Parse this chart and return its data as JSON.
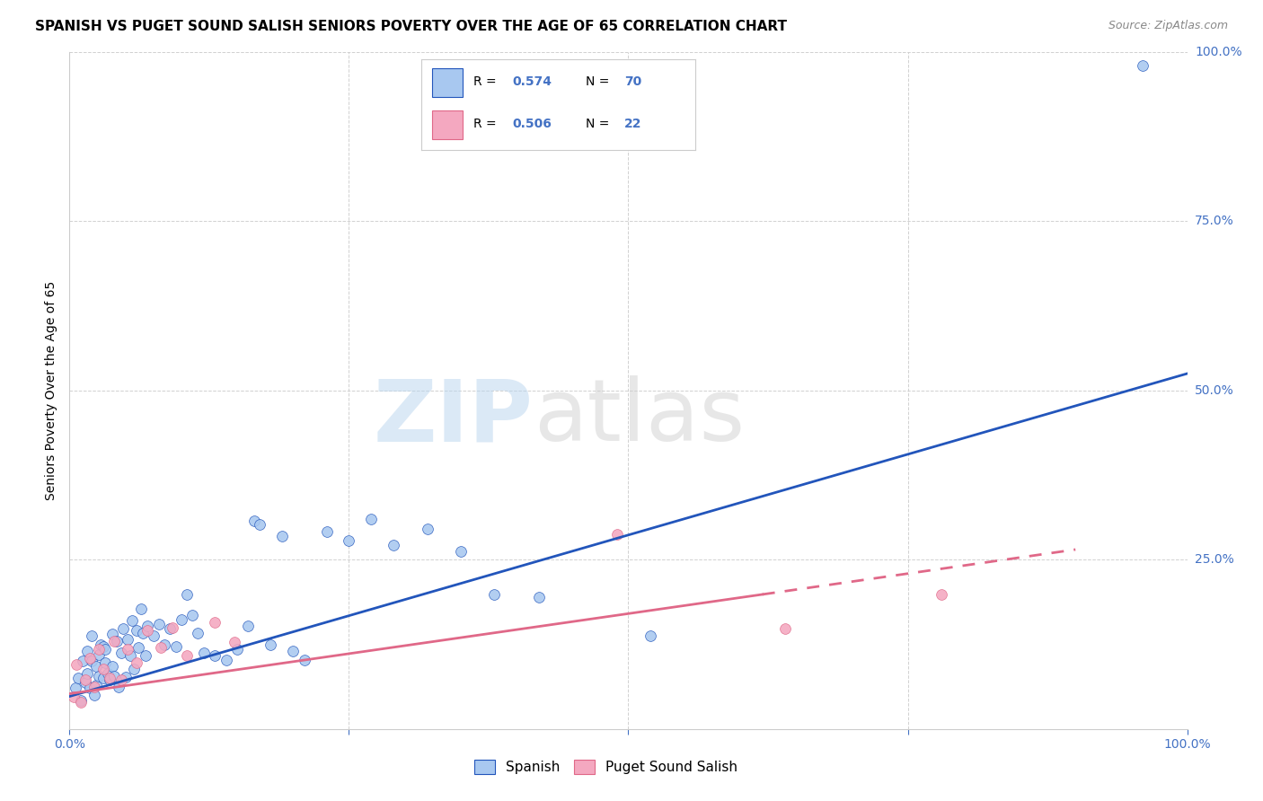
{
  "title": "SPANISH VS PUGET SOUND SALISH SENIORS POVERTY OVER THE AGE OF 65 CORRELATION CHART",
  "source": "Source: ZipAtlas.com",
  "ylabel": "Seniors Poverty Over the Age of 65",
  "xlim": [
    0,
    1.0
  ],
  "ylim": [
    0,
    1.0
  ],
  "xticks": [
    0.0,
    0.25,
    0.5,
    0.75,
    1.0
  ],
  "yticks": [
    0.0,
    0.25,
    0.5,
    0.75,
    1.0
  ],
  "xtick_labels": [
    "0.0%",
    "",
    "",
    "",
    "100.0%"
  ],
  "ytick_labels": [
    "",
    "25.0%",
    "50.0%",
    "75.0%",
    "100.0%"
  ],
  "spanish_color": "#a8c8f0",
  "salish_color": "#f4a8c0",
  "trend_spanish_color": "#2255bb",
  "trend_salish_color": "#e06888",
  "axis_label_color": "#4472c4",
  "bg_color": "#ffffff",
  "grid_color": "#cccccc",
  "spanish_x": [
    0.005,
    0.008,
    0.01,
    0.012,
    0.014,
    0.016,
    0.016,
    0.018,
    0.02,
    0.02,
    0.022,
    0.024,
    0.024,
    0.026,
    0.026,
    0.028,
    0.03,
    0.03,
    0.032,
    0.032,
    0.034,
    0.036,
    0.038,
    0.038,
    0.04,
    0.042,
    0.044,
    0.046,
    0.048,
    0.05,
    0.052,
    0.054,
    0.056,
    0.058,
    0.06,
    0.062,
    0.064,
    0.066,
    0.068,
    0.07,
    0.075,
    0.08,
    0.085,
    0.09,
    0.095,
    0.1,
    0.105,
    0.11,
    0.115,
    0.12,
    0.13,
    0.14,
    0.15,
    0.16,
    0.165,
    0.17,
    0.18,
    0.19,
    0.2,
    0.21,
    0.23,
    0.25,
    0.27,
    0.29,
    0.32,
    0.35,
    0.38,
    0.42,
    0.52,
    0.96
  ],
  "spanish_y": [
    0.06,
    0.075,
    0.042,
    0.1,
    0.068,
    0.115,
    0.082,
    0.06,
    0.1,
    0.138,
    0.05,
    0.092,
    0.065,
    0.11,
    0.078,
    0.125,
    0.075,
    0.122,
    0.098,
    0.118,
    0.082,
    0.072,
    0.14,
    0.092,
    0.078,
    0.13,
    0.062,
    0.112,
    0.148,
    0.076,
    0.132,
    0.108,
    0.16,
    0.088,
    0.145,
    0.12,
    0.178,
    0.142,
    0.108,
    0.152,
    0.138,
    0.155,
    0.125,
    0.148,
    0.122,
    0.162,
    0.198,
    0.168,
    0.142,
    0.112,
    0.108,
    0.102,
    0.118,
    0.152,
    0.308,
    0.302,
    0.125,
    0.285,
    0.115,
    0.102,
    0.292,
    0.278,
    0.31,
    0.272,
    0.295,
    0.262,
    0.198,
    0.195,
    0.138,
    0.98
  ],
  "salish_x": [
    0.004,
    0.006,
    0.01,
    0.014,
    0.018,
    0.022,
    0.026,
    0.03,
    0.036,
    0.04,
    0.046,
    0.052,
    0.06,
    0.07,
    0.082,
    0.092,
    0.105,
    0.13,
    0.148,
    0.49,
    0.64,
    0.78
  ],
  "salish_y": [
    0.048,
    0.095,
    0.04,
    0.072,
    0.105,
    0.062,
    0.118,
    0.088,
    0.075,
    0.13,
    0.072,
    0.118,
    0.098,
    0.145,
    0.12,
    0.15,
    0.108,
    0.158,
    0.128,
    0.288,
    0.148,
    0.198
  ],
  "trend_spanish_x0": 0.0,
  "trend_spanish_y0": 0.048,
  "trend_spanish_x1": 1.0,
  "trend_spanish_y1": 0.525,
  "trend_salish_x0": 0.0,
  "trend_salish_y0": 0.052,
  "trend_salish_solid_x1": 0.62,
  "trend_salish_dash_x1": 0.9,
  "trend_salish_y1": 0.265,
  "label_spanish": "Spanish",
  "label_salish": "Puget Sound Salish",
  "legend_R_spanish": "0.574",
  "legend_N_spanish": "70",
  "legend_R_salish": "0.506",
  "legend_N_salish": "22",
  "title_fontsize": 11,
  "tick_fontsize": 10,
  "ylabel_fontsize": 10,
  "source_fontsize": 9,
  "legend_fontsize": 11
}
